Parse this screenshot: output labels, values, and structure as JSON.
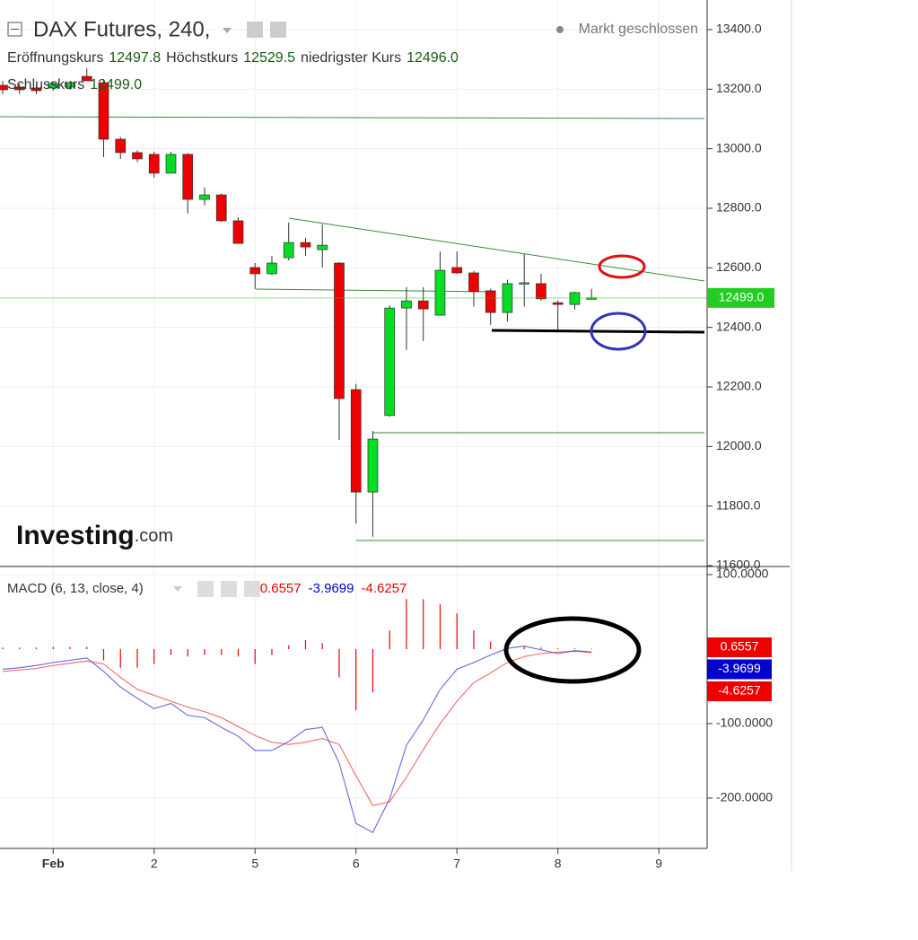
{
  "chart_data": [
    {
      "type": "candlestick",
      "title": "DAX Futures, 240,",
      "status": "Markt geschlossen",
      "ohlc_labels": [
        {
          "name": "Eröffnungskurs",
          "value": 12497.8
        },
        {
          "name": "Höchstkurs",
          "value": 12529.5
        },
        {
          "name": "niedrigster Kurs",
          "value": 12496,
          "label": "12496.0"
        },
        {
          "name": "Schlusskurs",
          "value": 12499,
          "label": "12499.0"
        }
      ],
      "watermark": [
        "Investing",
        ".com"
      ],
      "x": [
        0,
        1,
        2,
        3,
        4,
        5,
        6,
        7,
        8,
        9,
        10,
        11,
        12,
        13,
        14,
        15,
        16,
        17,
        18,
        19,
        20,
        21,
        22,
        23,
        24,
        25,
        26,
        27,
        28,
        29,
        30,
        31,
        32,
        33,
        34,
        35
      ],
      "open": [
        13213,
        13207,
        13204,
        13204,
        13207,
        13243,
        13222,
        13032,
        12987,
        12981,
        12918,
        12981,
        12830,
        12845,
        12758,
        12601,
        12580,
        12634,
        12685,
        12661,
        12616,
        12191,
        11847,
        12104,
        12465,
        12489,
        12441,
        12601,
        12583,
        12523,
        12450,
        12547,
        12547,
        12483,
        12477,
        12497.8
      ],
      "high": [
        13228,
        13219,
        13213,
        13222,
        13228,
        13270,
        13234,
        13040,
        12995,
        12990,
        12990,
        12985,
        12870,
        12850,
        12770,
        12616,
        12640,
        12752,
        12701,
        12746,
        12620,
        12210,
        12052,
        12474,
        12535,
        12535,
        12655,
        12655,
        12590,
        12530,
        12560,
        12646,
        12580,
        12490,
        12520,
        12529.5
      ],
      "low": [
        13183,
        13183,
        13183,
        13195,
        13198,
        13228,
        12972,
        12966,
        12955,
        12903,
        12918,
        12782,
        12810,
        12755,
        12680,
        12529,
        12575,
        12625,
        12640,
        12601,
        12022,
        11742,
        11697,
        12100,
        12324,
        12354,
        12440,
        12580,
        12470,
        12408,
        12420,
        12470,
        12490,
        12384,
        12460,
        12496
      ],
      "close": [
        13198,
        13198,
        13195,
        13219,
        13222,
        13228,
        13032,
        12987,
        12966,
        12918,
        12981,
        12830,
        12845,
        12758,
        12682,
        12580,
        12616,
        12685,
        12670,
        12676,
        12161,
        11847,
        12025,
        12465,
        12489,
        12462,
        12592,
        12583,
        12520,
        12450,
        12547,
        12550,
        12496,
        12477,
        12517,
        12499
      ],
      "up_color": "#00dd22",
      "down_color": "#ee0000",
      "xlim": [
        -0.16,
        41.87
      ],
      "ylim": [
        11600,
        13499.5
      ],
      "grid": true,
      "yticks": [
        {
          "value": 11600,
          "label": "11600.0"
        },
        {
          "value": 11800,
          "label": "11800.0"
        },
        {
          "value": 12000,
          "label": "12000.0"
        },
        {
          "value": 12200,
          "label": "12200.0"
        },
        {
          "value": 12400,
          "label": "12400.0"
        },
        {
          "value": 12600,
          "label": "12600.0"
        },
        {
          "value": 12800,
          "label": "12800.0"
        },
        {
          "value": 13000,
          "label": "13000.0"
        },
        {
          "value": 13200,
          "label": "13200.0"
        },
        {
          "value": 13400,
          "label": "13400.0"
        }
      ],
      "last_price": {
        "value": 12499,
        "label": "12499.0",
        "color": "#22cc22"
      }
    },
    {
      "type": "macd",
      "title": "MACD (6, 13, close, 4)",
      "x": [
        0,
        1,
        2,
        3,
        4,
        5,
        6,
        7,
        8,
        9,
        10,
        11,
        12,
        13,
        14,
        15,
        16,
        17,
        18,
        19,
        20,
        21,
        22,
        23,
        24,
        25,
        26,
        27,
        28,
        29,
        30,
        31,
        32,
        33,
        34,
        35
      ],
      "series": [
        {
          "kind": "histogram",
          "color": "#ee0000",
          "values": [
            2,
            2,
            2,
            3,
            3,
            3,
            -15,
            -25,
            -25,
            -20,
            -8,
            -10,
            -8,
            -8,
            -10,
            -20,
            -8,
            5,
            12,
            8,
            -38,
            -82,
            -58,
            25,
            67,
            67,
            60,
            48,
            25,
            10,
            2,
            3,
            2,
            1,
            1,
            0.6557
          ]
        },
        {
          "kind": "line",
          "color": "#0000cc",
          "values": [
            -27,
            -25,
            -22,
            -18,
            -15,
            -12,
            -30,
            -51,
            -66,
            -80,
            -73,
            -89,
            -92,
            -105,
            -117,
            -136,
            -136,
            -124,
            -108,
            -105,
            -153,
            -234,
            -246,
            -201,
            -129,
            -95,
            -54,
            -27,
            -18,
            -8,
            1,
            4,
            -1,
            -6,
            -2,
            -3.9699
          ]
        },
        {
          "kind": "line",
          "color": "#ee0000",
          "values": [
            -30,
            -28,
            -26,
            -22,
            -19,
            -16,
            -20,
            -38,
            -54,
            -62,
            -70,
            -78,
            -84,
            -92,
            -104,
            -116,
            -125,
            -128,
            -125,
            -120,
            -128,
            -170,
            -210,
            -205,
            -172,
            -135,
            -100,
            -70,
            -45,
            -32,
            -18,
            -10,
            -6,
            -4,
            -3,
            -4.6257
          ]
        }
      ],
      "xlim": [
        -0.16,
        41.87
      ],
      "ylim": [
        -267.5,
        109.6
      ],
      "yticks": [
        {
          "value": -200,
          "label": "-200.0000"
        },
        {
          "value": -100,
          "label": "-100.0000"
        },
        {
          "value": 100,
          "label": "100.0000"
        }
      ],
      "xticks": [
        {
          "value": 3,
          "label": "Feb"
        },
        {
          "value": 9,
          "label": "2"
        },
        {
          "value": 15,
          "label": "5"
        },
        {
          "value": 21,
          "label": "6"
        },
        {
          "value": 27,
          "label": "7"
        },
        {
          "value": 33,
          "label": "8"
        },
        {
          "value": 39,
          "label": "9"
        }
      ]
    }
  ]
}
